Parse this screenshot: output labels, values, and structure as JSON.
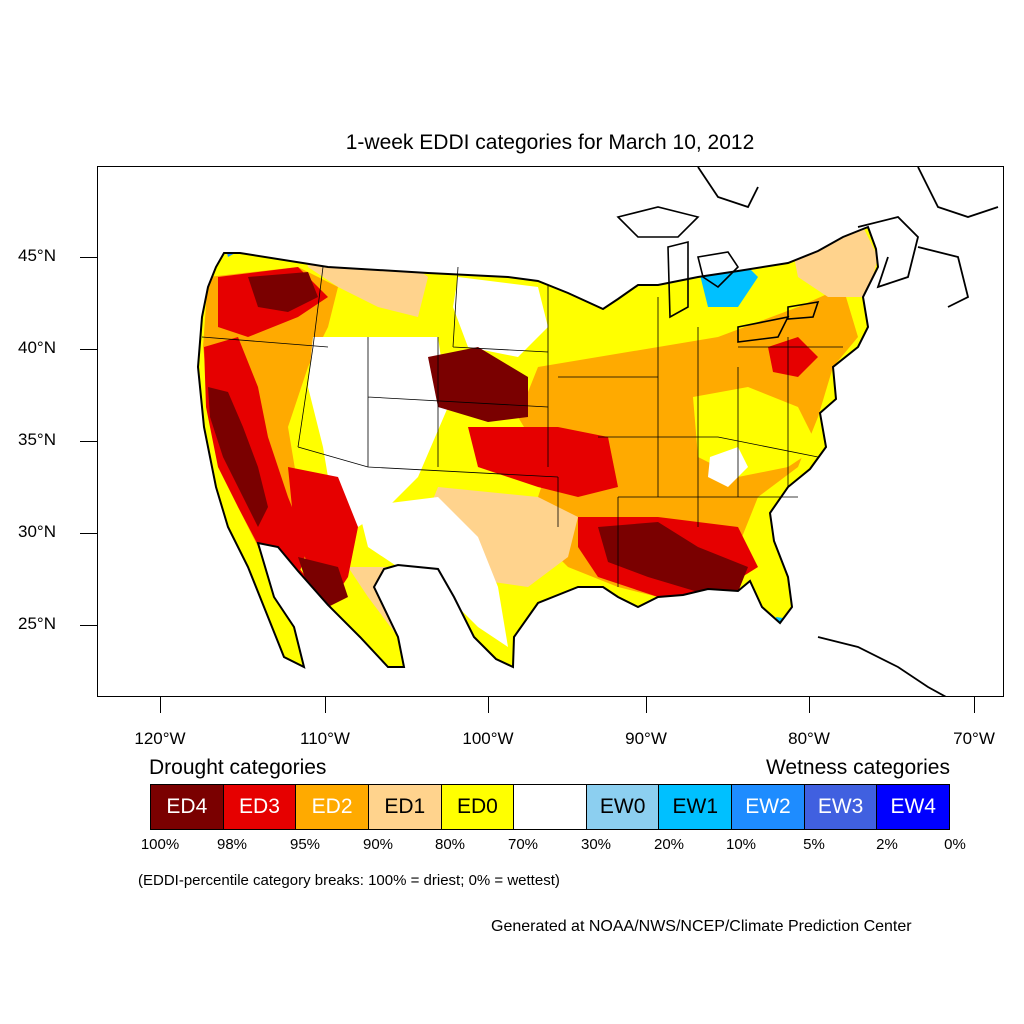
{
  "title": "1-week EDDI categories for March 10, 2012",
  "map": {
    "colors": {
      "ED4": "#7a0000",
      "ED3": "#e60000",
      "ED2": "#ffaa00",
      "ED1": "#ffd38d",
      "ED0": "#ffff00",
      "neutral": "#ffffff",
      "EW0": "#8ccff0",
      "EW1": "#00c0ff",
      "EW2": "#1e8cff",
      "EW3": "#4060e0",
      "EW4": "#0000ff"
    },
    "lat_ticks": [
      "45°N",
      "40°N",
      "35°N",
      "30°N",
      "25°N"
    ],
    "lon_ticks": [
      "120°W",
      "110°W",
      "100°W",
      "90°W",
      "80°W",
      "70°W"
    ]
  },
  "legend": {
    "drought_heading": "Drought categories",
    "wetness_heading": "Wetness categories",
    "categories": [
      {
        "label": "ED4",
        "color": "#7a0000",
        "text_color": "#ffffff"
      },
      {
        "label": "ED3",
        "color": "#e60000",
        "text_color": "#ffffff"
      },
      {
        "label": "ED2",
        "color": "#ffaa00",
        "text_color": "#ffffff"
      },
      {
        "label": "ED1",
        "color": "#ffd38d",
        "text_color": "#000000"
      },
      {
        "label": "ED0",
        "color": "#ffff00",
        "text_color": "#000000"
      },
      {
        "label": "",
        "color": "#ffffff",
        "text_color": "#000000"
      },
      {
        "label": "EW0",
        "color": "#8ccff0",
        "text_color": "#000000"
      },
      {
        "label": "EW1",
        "color": "#00c0ff",
        "text_color": "#000000"
      },
      {
        "label": "EW2",
        "color": "#1e8cff",
        "text_color": "#ffffff"
      },
      {
        "label": "EW3",
        "color": "#4060e0",
        "text_color": "#ffffff"
      },
      {
        "label": "EW4",
        "color": "#0000ff",
        "text_color": "#ffffff"
      }
    ],
    "breaks": [
      "100%",
      "98%",
      "95%",
      "90%",
      "80%",
      "70%",
      "30%",
      "20%",
      "10%",
      "5%",
      "2%",
      "0%"
    ],
    "note": "(EDDI-percentile category breaks: 100% = driest; 0% = wettest)"
  },
  "credit": "Generated at NOAA/NWS/NCEP/Climate Prediction Center"
}
